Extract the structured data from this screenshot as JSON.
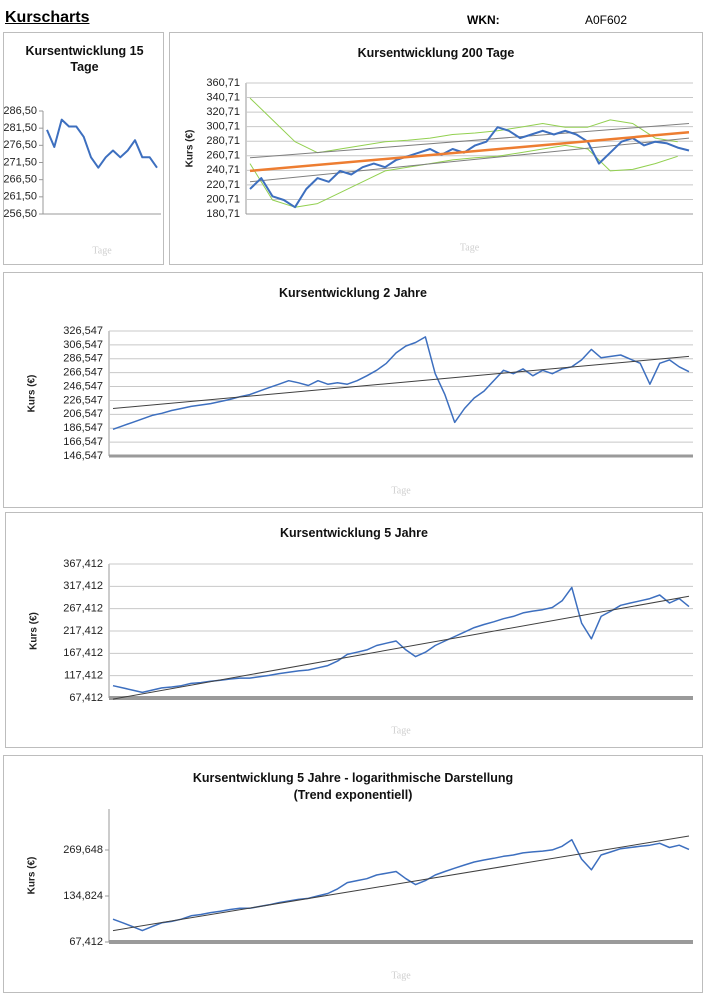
{
  "header": {
    "title": "Kurscharts",
    "wkn_label": "WKN:",
    "wkn": "A0F602"
  },
  "chart_data": [
    {
      "type": "line",
      "title": "Kursentwicklung 15 Tage",
      "x_label": "Tage",
      "ylim": [
        256.5,
        286.5
      ],
      "yticks": [
        {
          "value": 256.5,
          "label": "256,50"
        },
        {
          "value": 261.5,
          "label": "261,50"
        },
        {
          "value": 266.5,
          "label": "266,50"
        },
        {
          "value": 271.5,
          "label": "271,50"
        },
        {
          "value": 276.5,
          "label": "276,50"
        },
        {
          "value": 281.5,
          "label": "281,50"
        },
        {
          "value": 286.5,
          "label": "286,50"
        }
      ],
      "grid": false,
      "series": [
        {
          "color": "#3d6fbf",
          "width": 2,
          "values": [
            281,
            276,
            284,
            282,
            282,
            279,
            273,
            270,
            273,
            275,
            273,
            275,
            278,
            273,
            273,
            270
          ]
        }
      ]
    },
    {
      "type": "line",
      "title": "Kursentwicklung 200 Tage",
      "x_label": "Tage",
      "y_label": "Kurs (€)",
      "ylim": [
        180.71,
        360.71
      ],
      "yticks": [
        {
          "value": 180.71,
          "label": "180,71"
        },
        {
          "value": 200.71,
          "label": "200,71"
        },
        {
          "value": 220.71,
          "label": "220,71"
        },
        {
          "value": 240.71,
          "label": "240,71"
        },
        {
          "value": 260.71,
          "label": "260,71"
        },
        {
          "value": 280.71,
          "label": "280,71"
        },
        {
          "value": 300.71,
          "label": "300,71"
        },
        {
          "value": 320.71,
          "label": "320,71"
        },
        {
          "value": 340.71,
          "label": "340,71"
        },
        {
          "value": 360.71,
          "label": "360,71"
        }
      ],
      "grid": true,
      "series": [
        {
          "color": "#92d050",
          "width": 1,
          "x": [
            0,
            2,
            4,
            6,
            8,
            10,
            12,
            14,
            16,
            18,
            20,
            22,
            24,
            26,
            28,
            30,
            32,
            34,
            36,
            38
          ],
          "values": [
            340,
            310,
            280,
            265,
            270,
            275,
            280,
            282,
            285,
            290,
            292,
            295,
            300,
            305,
            300,
            300,
            310,
            305,
            285,
            280
          ]
        },
        {
          "color": "#92d050",
          "width": 1,
          "x": [
            0,
            2,
            4,
            6,
            8,
            10,
            12,
            14,
            16,
            18,
            20,
            22,
            24,
            26,
            28,
            30,
            32,
            34,
            36,
            38
          ],
          "values": [
            250,
            200,
            190,
            195,
            210,
            225,
            240,
            245,
            250,
            255,
            258,
            260,
            265,
            270,
            275,
            270,
            240,
            242,
            250,
            260
          ]
        },
        {
          "color": "#7f7f7f",
          "width": 1,
          "x": [
            0,
            39
          ],
          "values": [
            258,
            305
          ]
        },
        {
          "color": "#7f7f7f",
          "width": 1,
          "x": [
            0,
            39
          ],
          "values": [
            225,
            285
          ]
        },
        {
          "color": "#3d6fbf",
          "width": 2,
          "values": [
            215,
            230,
            205,
            200,
            190,
            215,
            230,
            225,
            240,
            235,
            245,
            250,
            245,
            255,
            260,
            265,
            270,
            262,
            270,
            265,
            275,
            280,
            300,
            295,
            285,
            290,
            295,
            290,
            295,
            290,
            280,
            250,
            265,
            280,
            285,
            275,
            280,
            278,
            272,
            268
          ]
        },
        {
          "color": "#ed7d31",
          "width": 2.5,
          "x": [
            0,
            39
          ],
          "values": [
            240,
            293
          ]
        }
      ]
    },
    {
      "type": "line",
      "title": "Kursentwicklung 2 Jahre",
      "x_label": "Tage",
      "y_label": "Kurs (€)",
      "ylim": [
        146.547,
        326.547
      ],
      "yticks": [
        {
          "value": 146.547,
          "label": "146,547"
        },
        {
          "value": 166.547,
          "label": "166,547"
        },
        {
          "value": 186.547,
          "label": "186,547"
        },
        {
          "value": 206.547,
          "label": "206,547"
        },
        {
          "value": 226.547,
          "label": "226,547"
        },
        {
          "value": 246.547,
          "label": "246,547"
        },
        {
          "value": 266.547,
          "label": "266,547"
        },
        {
          "value": 286.547,
          "label": "286,547"
        },
        {
          "value": 306.547,
          "label": "306,547"
        },
        {
          "value": 326.547,
          "label": "326,547"
        }
      ],
      "grid": true,
      "series": [
        {
          "color": "#3d6fbf",
          "width": 1.5,
          "values": [
            185,
            190,
            195,
            200,
            205,
            208,
            212,
            215,
            218,
            220,
            222,
            225,
            228,
            232,
            235,
            240,
            245,
            250,
            255,
            252,
            248,
            255,
            250,
            252,
            250,
            255,
            262,
            270,
            280,
            295,
            305,
            310,
            318,
            265,
            235,
            195,
            215,
            230,
            240,
            255,
            270,
            265,
            272,
            262,
            270,
            265,
            272,
            275,
            285,
            300,
            288,
            290,
            292,
            286,
            280,
            250,
            280,
            285,
            275,
            268
          ]
        },
        {
          "color": "#404040",
          "width": 1,
          "x": [
            0,
            59
          ],
          "values": [
            215,
            290
          ]
        }
      ]
    },
    {
      "type": "line",
      "title": "Kursentwicklung 5 Jahre",
      "x_label": "Tage",
      "y_label": "Kurs (€)",
      "ylim": [
        67.412,
        367.412
      ],
      "yticks": [
        {
          "value": 67.412,
          "label": "67,412"
        },
        {
          "value": 117.412,
          "label": "117,412"
        },
        {
          "value": 167.412,
          "label": "167,412"
        },
        {
          "value": 217.412,
          "label": "217,412"
        },
        {
          "value": 267.412,
          "label": "267,412"
        },
        {
          "value": 317.412,
          "label": "317,412"
        },
        {
          "value": 367.412,
          "label": "367,412"
        }
      ],
      "grid": true,
      "series": [
        {
          "color": "#3d6fbf",
          "width": 1.5,
          "values": [
            95,
            90,
            85,
            80,
            85,
            90,
            92,
            95,
            100,
            102,
            105,
            107,
            110,
            112,
            112,
            115,
            118,
            122,
            125,
            128,
            130,
            135,
            140,
            150,
            165,
            170,
            175,
            185,
            190,
            195,
            175,
            160,
            170,
            185,
            195,
            205,
            215,
            225,
            232,
            238,
            245,
            250,
            258,
            262,
            265,
            270,
            285,
            315,
            235,
            200,
            250,
            262,
            275,
            280,
            285,
            290,
            298,
            280,
            290,
            272
          ]
        },
        {
          "color": "#404040",
          "width": 1,
          "x": [
            0,
            59
          ],
          "values": [
            65,
            295
          ]
        }
      ]
    },
    {
      "type": "line",
      "title": "Kursentwicklung 5 Jahre - logarithmische Darstellung",
      "subtitle": "(Trend exponentiell)",
      "x_label": "Tage",
      "y_label": "Kurs (€)",
      "yscale": "log",
      "ylim": [
        67.412,
        500
      ],
      "yticks": [
        {
          "value": 67.412,
          "label": "67,412"
        },
        {
          "value": 134.824,
          "label": "134,824"
        },
        {
          "value": 269.648,
          "label": "269,648"
        }
      ],
      "grid": false,
      "series": [
        {
          "color": "#3d6fbf",
          "width": 1.5,
          "values": [
            95,
            90,
            85,
            80,
            85,
            90,
            92,
            95,
            100,
            102,
            105,
            107,
            110,
            112,
            112,
            115,
            118,
            122,
            125,
            128,
            130,
            135,
            140,
            150,
            165,
            170,
            175,
            185,
            190,
            195,
            175,
            160,
            170,
            185,
            195,
            205,
            215,
            225,
            232,
            238,
            245,
            250,
            258,
            262,
            265,
            270,
            285,
            315,
            235,
            200,
            250,
            262,
            275,
            280,
            285,
            290,
            298,
            280,
            290,
            272
          ]
        },
        {
          "color": "#404040",
          "width": 1,
          "x": [
            0,
            59
          ],
          "values": [
            80,
            333
          ]
        }
      ]
    }
  ]
}
